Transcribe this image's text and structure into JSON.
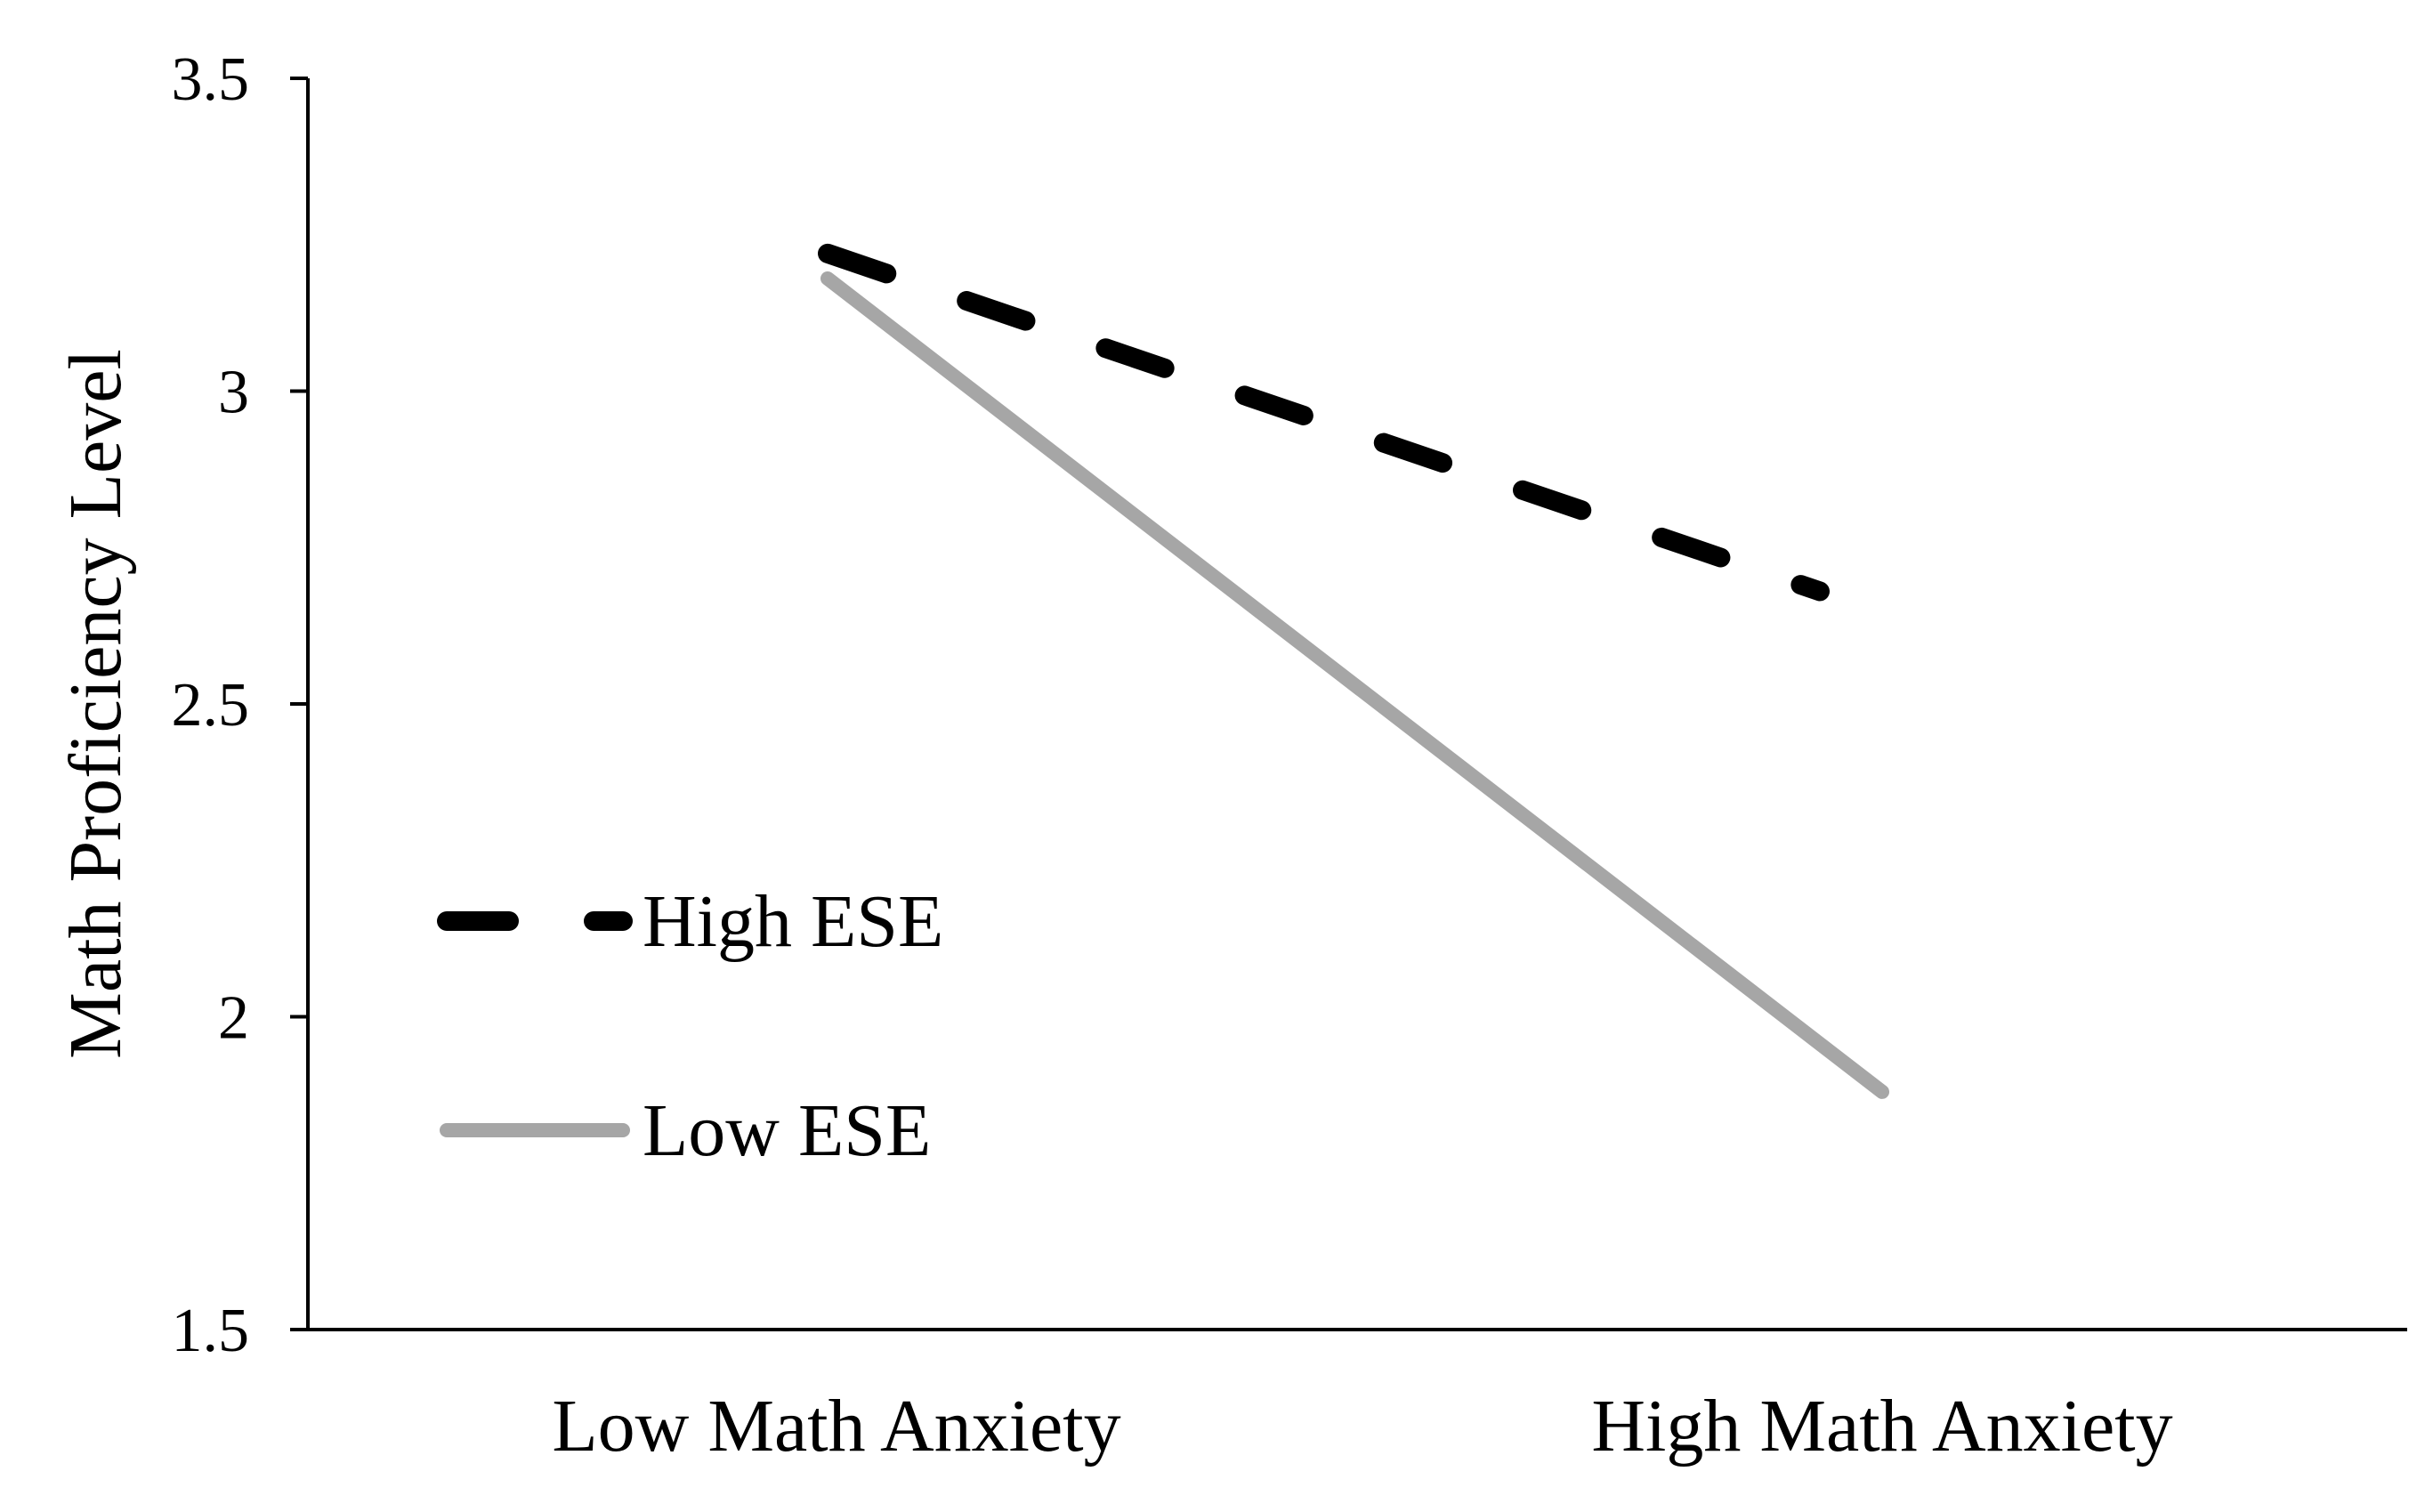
{
  "chart_data": {
    "type": "line",
    "title": "",
    "xlabel": "",
    "ylabel": "Math Proficiency Level",
    "categories": [
      "Low Math Anxiety",
      "High Math Anxiety"
    ],
    "ylim": [
      1.5,
      3.5
    ],
    "yticks": [
      "1.5",
      "2",
      "2.5",
      "3",
      "3.5"
    ],
    "grid": false,
    "legend_position": "left-middle",
    "series": [
      {
        "name": "High ESE",
        "values": [
          3.22,
          2.68
        ],
        "color": "#000000",
        "style": "dashed"
      },
      {
        "name": "Low ESE",
        "values": [
          3.18,
          1.88
        ],
        "color": "#a6a6a6",
        "style": "solid"
      }
    ]
  }
}
